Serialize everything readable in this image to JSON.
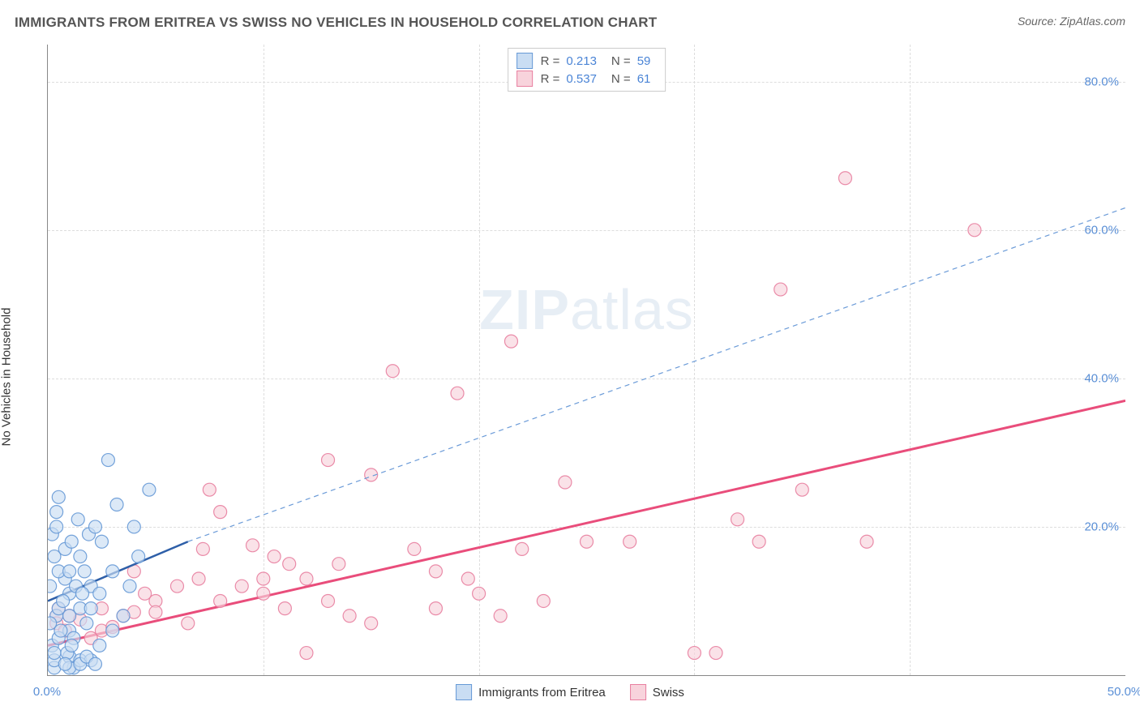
{
  "header": {
    "title": "IMMIGRANTS FROM ERITREA VS SWISS NO VEHICLES IN HOUSEHOLD CORRELATION CHART",
    "source_prefix": "Source: ",
    "source_name": "ZipAtlas.com"
  },
  "watermark": {
    "zip": "ZIP",
    "atlas": "atlas"
  },
  "chart": {
    "type": "scatter",
    "y_label": "No Vehicles in Household",
    "x_domain": [
      0,
      50
    ],
    "y_domain": [
      0,
      85
    ],
    "x_ticks": [
      0,
      10,
      20,
      30,
      40,
      50
    ],
    "x_tick_labels": [
      "0.0%",
      "",
      "",
      "",
      "",
      "50.0%"
    ],
    "y_ticks": [
      20,
      40,
      60,
      80
    ],
    "y_tick_labels": [
      "20.0%",
      "40.0%",
      "60.0%",
      "80.0%"
    ],
    "grid_color": "#dddddd",
    "background_color": "#ffffff",
    "marker_radius": 8,
    "marker_stroke_width": 1.2,
    "series": [
      {
        "name": "Immigrants from Eritrea",
        "fill": "#c9ddf3",
        "stroke": "#6699d6",
        "stroke_opacity": 0.9,
        "r_value": "0.213",
        "n_value": "59",
        "regression": {
          "x1": 0,
          "y1": 10,
          "x2": 6.5,
          "y2": 18,
          "color": "#2e5fa8",
          "width": 2.5,
          "dash": ""
        },
        "extrapolation": {
          "x1": 6.5,
          "y1": 18,
          "x2": 50,
          "y2": 63,
          "color": "#6b9bd8",
          "width": 1.2,
          "dash": "6 5"
        },
        "points": [
          [
            0.3,
            1
          ],
          [
            0.3,
            2
          ],
          [
            1.2,
            1
          ],
          [
            1,
            2.5
          ],
          [
            0.2,
            4
          ],
          [
            0.4,
            8
          ],
          [
            0.5,
            9
          ],
          [
            1.5,
            2
          ],
          [
            0.1,
            12
          ],
          [
            0.8,
            13
          ],
          [
            0.5,
            14
          ],
          [
            0.3,
            16
          ],
          [
            0.3,
            3
          ],
          [
            0.5,
            5
          ],
          [
            1,
            6
          ],
          [
            1,
            8
          ],
          [
            1.5,
            9
          ],
          [
            0.4,
            22
          ],
          [
            1,
            11
          ],
          [
            1.3,
            12
          ],
          [
            1,
            14
          ],
          [
            0.2,
            19
          ],
          [
            0.8,
            17
          ],
          [
            1.1,
            18
          ],
          [
            1.5,
            16
          ],
          [
            1.7,
            14
          ],
          [
            1.9,
            19
          ],
          [
            2,
            12
          ],
          [
            2,
            9
          ],
          [
            2.2,
            20
          ],
          [
            2.5,
            18
          ],
          [
            2.8,
            29
          ],
          [
            3.2,
            23
          ],
          [
            4,
            20
          ],
          [
            4.2,
            16
          ],
          [
            4.7,
            25
          ],
          [
            0.5,
            24
          ],
          [
            3.0,
            6
          ],
          [
            2.0,
            2
          ],
          [
            2.4,
            4
          ],
          [
            3.5,
            8
          ],
          [
            0.1,
            7
          ],
          [
            0.7,
            10
          ],
          [
            1.2,
            5
          ],
          [
            1.8,
            7
          ],
          [
            2.4,
            11
          ],
          [
            0.9,
            3
          ],
          [
            3.0,
            14
          ],
          [
            3.8,
            12
          ],
          [
            1.4,
            21
          ],
          [
            1.0,
            1
          ],
          [
            0.6,
            6
          ],
          [
            0.8,
            1.5
          ],
          [
            1.5,
            1.5
          ],
          [
            1.8,
            2.5
          ],
          [
            2.2,
            1.5
          ],
          [
            1.1,
            4
          ],
          [
            0.4,
            20
          ],
          [
            1.6,
            11
          ]
        ]
      },
      {
        "name": "Swiss",
        "fill": "#f8d3dc",
        "stroke": "#e87fa0",
        "stroke_opacity": 0.9,
        "r_value": "0.537",
        "n_value": "61",
        "regression": {
          "x1": 0,
          "y1": 4,
          "x2": 50,
          "y2": 37,
          "color": "#e94d7b",
          "width": 3,
          "dash": ""
        },
        "extrapolation": null,
        "points": [
          [
            0.5,
            9
          ],
          [
            1,
            8
          ],
          [
            1.5,
            7.5
          ],
          [
            2,
            5
          ],
          [
            2.5,
            6
          ],
          [
            0.4,
            8
          ],
          [
            0.4,
            7
          ],
          [
            3,
            6.5
          ],
          [
            3.5,
            8
          ],
          [
            4,
            8.5
          ],
          [
            4.5,
            11
          ],
          [
            5,
            10
          ],
          [
            5,
            8.5
          ],
          [
            6,
            12
          ],
          [
            6.5,
            7
          ],
          [
            7,
            13
          ],
          [
            7.5,
            25
          ],
          [
            8,
            10
          ],
          [
            8,
            22
          ],
          [
            9,
            12
          ],
          [
            10,
            13
          ],
          [
            10,
            11
          ],
          [
            11,
            9
          ],
          [
            11.2,
            15
          ],
          [
            12,
            3
          ],
          [
            12,
            13
          ],
          [
            13,
            29
          ],
          [
            13.5,
            15
          ],
          [
            14,
            8
          ],
          [
            15,
            7
          ],
          [
            15,
            27
          ],
          [
            16,
            41
          ],
          [
            17,
            17
          ],
          [
            18,
            14
          ],
          [
            18,
            9
          ],
          [
            19,
            38
          ],
          [
            19.5,
            13
          ],
          [
            20,
            11
          ],
          [
            21,
            8
          ],
          [
            21.5,
            45
          ],
          [
            22,
            17
          ],
          [
            23,
            10
          ],
          [
            24,
            26
          ],
          [
            25,
            18
          ],
          [
            27,
            18
          ],
          [
            30,
            3
          ],
          [
            31,
            3
          ],
          [
            32,
            21
          ],
          [
            33,
            18
          ],
          [
            34,
            52
          ],
          [
            35,
            25
          ],
          [
            37,
            67
          ],
          [
            38,
            18
          ],
          [
            43,
            60
          ],
          [
            7.2,
            17
          ],
          [
            10.5,
            16
          ],
          [
            13,
            10
          ],
          [
            0.8,
            6
          ],
          [
            2.5,
            9
          ],
          [
            4,
            14
          ],
          [
            9.5,
            17.5
          ]
        ]
      }
    ],
    "legend_top": {
      "r_label": "R =",
      "n_label": "N ="
    },
    "legend_bottom": {
      "items": [
        "Immigrants from Eritrea",
        "Swiss"
      ]
    }
  }
}
